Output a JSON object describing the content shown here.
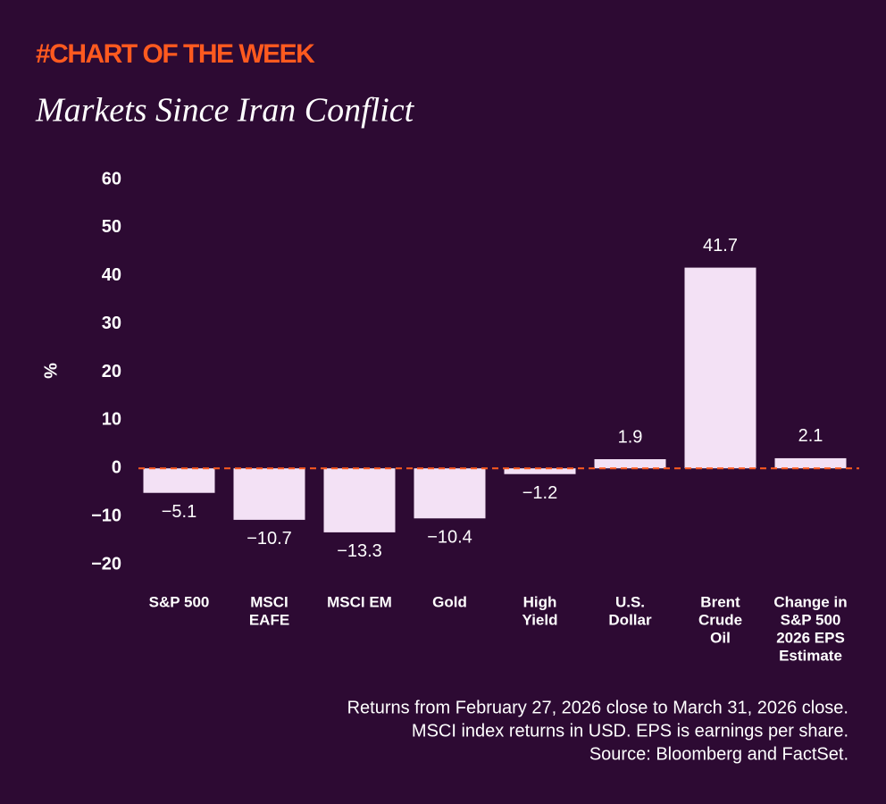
{
  "chart_data": {
    "type": "bar",
    "kicker": "#CHART OF THE WEEK",
    "title": "Markets Since Iran Conflict",
    "y_label": "%",
    "categories": [
      [
        "S&P 500"
      ],
      [
        "MSCI",
        "EAFE"
      ],
      [
        "MSCI EM"
      ],
      [
        "Gold"
      ],
      [
        "High",
        "Yield"
      ],
      [
        "U.S.",
        "Dollar"
      ],
      [
        "Brent",
        "Crude",
        "Oil"
      ],
      [
        "Change in",
        "S&P 500",
        "2026 EPS",
        "Estimate"
      ]
    ],
    "values": [
      -5.1,
      -10.7,
      -13.3,
      -10.4,
      -1.2,
      1.9,
      41.7,
      2.1
    ],
    "value_labels": [
      "−5.1",
      "−10.7",
      "−13.3",
      "−10.4",
      "−1.2",
      "1.9",
      "41.7",
      "2.1"
    ],
    "color": "#f3e1f5",
    "zero_line_color": "#ff5a1f",
    "ylim": [
      -20,
      60
    ],
    "yticks": [
      {
        "value": -20,
        "label": "−20"
      },
      {
        "value": -10,
        "label": "−10"
      },
      0,
      10,
      20,
      30,
      40,
      50,
      60
    ],
    "grid": false,
    "notes": [
      "Returns from February 27, 2026 close to March 31, 2026 close.",
      "MSCI index returns in USD. EPS is earnings per share.",
      "Source: Bloomberg and FactSet."
    ]
  }
}
